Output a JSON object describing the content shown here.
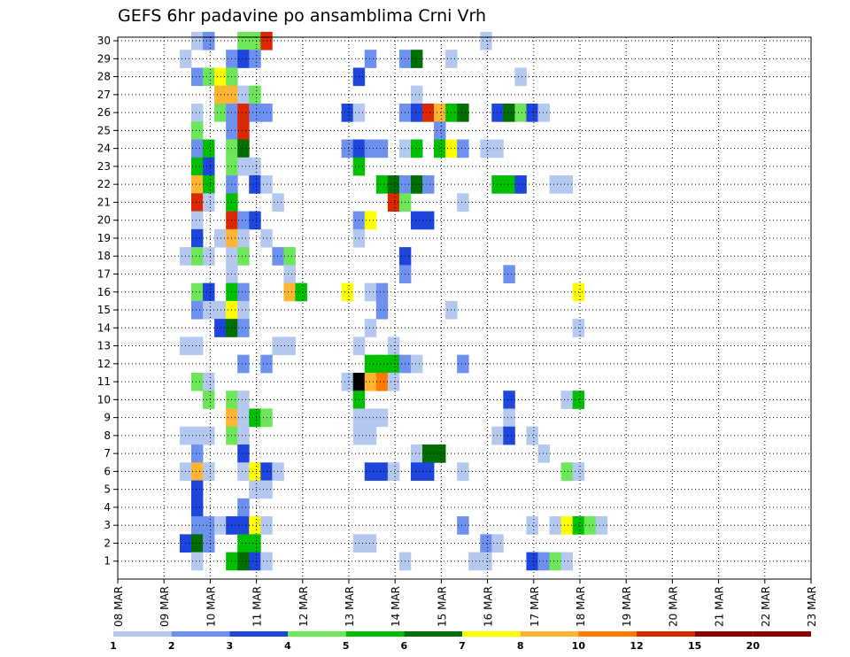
{
  "chart_data": {
    "type": "heatmap",
    "title": "GEFS 6hr padavine po ansamblima Crni Vrh",
    "x_labels": [
      "08 MAR",
      "09 MAR",
      "10 MAR",
      "11 MAR",
      "12 MAR",
      "13 MAR",
      "14 MAR",
      "15 MAR",
      "16 MAR",
      "17 MAR",
      "18 MAR",
      "19 MAR",
      "20 MAR",
      "21 MAR",
      "22 MAR",
      "23 MAR"
    ],
    "y_labels": [
      "1",
      "2",
      "3",
      "4",
      "5",
      "6",
      "7",
      "8",
      "9",
      "10",
      "11",
      "12",
      "13",
      "14",
      "15",
      "16",
      "17",
      "18",
      "19",
      "20",
      "21",
      "22",
      "23",
      "24",
      "25",
      "26",
      "27",
      "28",
      "29",
      "30"
    ],
    "legend": {
      "colors": [
        "#b4c8f0",
        "#6e91f0",
        "#1e46dc",
        "#6ee65a",
        "#00be00",
        "#006e00",
        "#ffff00",
        "#ffb432",
        "#ff7800",
        "#dc2800",
        "#8c0000"
      ],
      "labels": [
        "1",
        "2",
        "3",
        "4",
        "5",
        "6",
        "7",
        "8",
        "10",
        "12",
        "15",
        "20"
      ]
    },
    "cells": [
      [
        0,
        30,
        1
      ],
      [
        1,
        30,
        2
      ],
      [
        4,
        30,
        4
      ],
      [
        5,
        30,
        4
      ],
      [
        6,
        30,
        10
      ],
      [
        25,
        30,
        1
      ],
      [
        -1,
        29,
        1
      ],
      [
        3,
        29,
        2
      ],
      [
        4,
        29,
        3
      ],
      [
        5,
        29,
        2
      ],
      [
        15,
        29,
        2
      ],
      [
        18,
        29,
        2
      ],
      [
        19,
        29,
        6
      ],
      [
        22,
        29,
        1
      ],
      [
        0,
        28,
        2
      ],
      [
        1,
        28,
        4
      ],
      [
        2,
        28,
        7
      ],
      [
        3,
        28,
        4
      ],
      [
        14,
        28,
        3
      ],
      [
        28,
        28,
        1
      ],
      [
        2,
        27,
        8
      ],
      [
        3,
        27,
        8
      ],
      [
        4,
        27,
        1
      ],
      [
        5,
        27,
        4
      ],
      [
        19,
        27,
        1
      ],
      [
        0,
        26,
        1
      ],
      [
        2,
        26,
        4
      ],
      [
        3,
        26,
        2
      ],
      [
        4,
        26,
        10
      ],
      [
        5,
        26,
        2
      ],
      [
        6,
        26,
        2
      ],
      [
        13,
        26,
        3
      ],
      [
        14,
        26,
        1
      ],
      [
        18,
        26,
        2
      ],
      [
        19,
        26,
        3
      ],
      [
        20,
        26,
        10
      ],
      [
        21,
        26,
        8
      ],
      [
        22,
        26,
        5
      ],
      [
        23,
        26,
        6
      ],
      [
        26,
        26,
        3
      ],
      [
        27,
        26,
        6
      ],
      [
        28,
        26,
        4
      ],
      [
        29,
        26,
        3
      ],
      [
        30,
        26,
        1
      ],
      [
        0,
        25,
        4
      ],
      [
        3,
        25,
        2
      ],
      [
        4,
        25,
        10
      ],
      [
        21,
        25,
        2
      ],
      [
        0,
        24,
        2
      ],
      [
        1,
        24,
        5
      ],
      [
        3,
        24,
        4
      ],
      [
        4,
        24,
        6
      ],
      [
        13,
        24,
        2
      ],
      [
        14,
        24,
        3
      ],
      [
        15,
        24,
        2
      ],
      [
        16,
        24,
        2
      ],
      [
        18,
        24,
        1
      ],
      [
        19,
        24,
        5
      ],
      [
        21,
        24,
        5
      ],
      [
        22,
        24,
        7
      ],
      [
        23,
        24,
        2
      ],
      [
        25,
        24,
        1
      ],
      [
        26,
        24,
        1
      ],
      [
        0,
        23,
        5
      ],
      [
        1,
        23,
        3
      ],
      [
        3,
        23,
        4
      ],
      [
        4,
        23,
        1
      ],
      [
        5,
        23,
        1
      ],
      [
        14,
        23,
        5
      ],
      [
        0,
        22,
        8
      ],
      [
        1,
        22,
        5
      ],
      [
        3,
        22,
        2
      ],
      [
        5,
        22,
        3
      ],
      [
        6,
        22,
        1
      ],
      [
        16,
        22,
        5
      ],
      [
        17,
        22,
        6
      ],
      [
        18,
        22,
        2
      ],
      [
        19,
        22,
        6
      ],
      [
        20,
        22,
        2
      ],
      [
        26,
        22,
        5
      ],
      [
        27,
        22,
        5
      ],
      [
        28,
        22,
        3
      ],
      [
        31,
        22,
        1
      ],
      [
        32,
        22,
        1
      ],
      [
        0,
        21,
        10
      ],
      [
        1,
        21,
        1
      ],
      [
        3,
        21,
        5
      ],
      [
        7,
        21,
        1
      ],
      [
        17,
        21,
        10
      ],
      [
        18,
        21,
        4
      ],
      [
        23,
        21,
        1
      ],
      [
        0,
        20,
        1
      ],
      [
        3,
        20,
        10
      ],
      [
        4,
        20,
        2
      ],
      [
        5,
        20,
        3
      ],
      [
        14,
        20,
        2
      ],
      [
        15,
        20,
        7
      ],
      [
        19,
        20,
        3
      ],
      [
        20,
        20,
        3
      ],
      [
        0,
        19,
        3
      ],
      [
        2,
        19,
        1
      ],
      [
        3,
        19,
        8
      ],
      [
        4,
        19,
        1
      ],
      [
        6,
        19,
        1
      ],
      [
        14,
        19,
        1
      ],
      [
        -1,
        18,
        1
      ],
      [
        0,
        18,
        4
      ],
      [
        1,
        18,
        1
      ],
      [
        3,
        18,
        1
      ],
      [
        4,
        18,
        4
      ],
      [
        7,
        18,
        2
      ],
      [
        8,
        18,
        4
      ],
      [
        18,
        18,
        3
      ],
      [
        3,
        17,
        1
      ],
      [
        8,
        17,
        1
      ],
      [
        18,
        17,
        2
      ],
      [
        27,
        17,
        2
      ],
      [
        0,
        16,
        4
      ],
      [
        1,
        16,
        3
      ],
      [
        3,
        16,
        5
      ],
      [
        4,
        16,
        2
      ],
      [
        8,
        16,
        8
      ],
      [
        9,
        16,
        5
      ],
      [
        13,
        16,
        7
      ],
      [
        15,
        16,
        1
      ],
      [
        16,
        16,
        2
      ],
      [
        33,
        16,
        7
      ],
      [
        0,
        15,
        2
      ],
      [
        1,
        15,
        1
      ],
      [
        2,
        15,
        1
      ],
      [
        3,
        15,
        7
      ],
      [
        4,
        15,
        1
      ],
      [
        16,
        15,
        2
      ],
      [
        22,
        15,
        1
      ],
      [
        2,
        14,
        3
      ],
      [
        3,
        14,
        6
      ],
      [
        4,
        14,
        2
      ],
      [
        15,
        14,
        1
      ],
      [
        33,
        14,
        1
      ],
      [
        -1,
        13,
        1
      ],
      [
        0,
        13,
        1
      ],
      [
        7,
        13,
        1
      ],
      [
        8,
        13,
        1
      ],
      [
        14,
        13,
        1
      ],
      [
        17,
        13,
        1
      ],
      [
        4,
        12,
        2
      ],
      [
        6,
        12,
        2
      ],
      [
        15,
        12,
        5
      ],
      [
        16,
        12,
        5
      ],
      [
        17,
        12,
        5
      ],
      [
        18,
        12,
        2
      ],
      [
        19,
        12,
        1
      ],
      [
        23,
        12,
        2
      ],
      [
        0,
        11,
        4
      ],
      [
        1,
        11,
        1
      ],
      [
        13,
        11,
        1
      ],
      [
        14,
        11,
        12
      ],
      [
        15,
        11,
        8
      ],
      [
        16,
        11,
        9
      ],
      [
        17,
        11,
        1
      ],
      [
        1,
        10,
        4
      ],
      [
        3,
        10,
        4
      ],
      [
        4,
        10,
        1
      ],
      [
        14,
        10,
        5
      ],
      [
        27,
        10,
        3
      ],
      [
        32,
        10,
        1
      ],
      [
        33,
        10,
        5
      ],
      [
        3,
        9,
        8
      ],
      [
        4,
        9,
        1
      ],
      [
        5,
        9,
        5
      ],
      [
        6,
        9,
        4
      ],
      [
        14,
        9,
        1
      ],
      [
        15,
        9,
        1
      ],
      [
        16,
        9,
        1
      ],
      [
        27,
        9,
        1
      ],
      [
        -1,
        8,
        1
      ],
      [
        0,
        8,
        1
      ],
      [
        1,
        8,
        1
      ],
      [
        3,
        8,
        4
      ],
      [
        4,
        8,
        1
      ],
      [
        14,
        8,
        1
      ],
      [
        15,
        8,
        1
      ],
      [
        26,
        8,
        1
      ],
      [
        27,
        8,
        3
      ],
      [
        29,
        8,
        1
      ],
      [
        0,
        7,
        2
      ],
      [
        4,
        7,
        3
      ],
      [
        19,
        7,
        1
      ],
      [
        20,
        7,
        6
      ],
      [
        21,
        7,
        6
      ],
      [
        30,
        7,
        1
      ],
      [
        -1,
        6,
        1
      ],
      [
        0,
        6,
        8
      ],
      [
        1,
        6,
        1
      ],
      [
        4,
        6,
        1
      ],
      [
        5,
        6,
        7
      ],
      [
        6,
        6,
        3
      ],
      [
        7,
        6,
        1
      ],
      [
        15,
        6,
        3
      ],
      [
        16,
        6,
        3
      ],
      [
        17,
        6,
        1
      ],
      [
        19,
        6,
        3
      ],
      [
        20,
        6,
        3
      ],
      [
        23,
        6,
        1
      ],
      [
        32,
        6,
        4
      ],
      [
        33,
        6,
        1
      ],
      [
        0,
        5,
        3
      ],
      [
        5,
        5,
        1
      ],
      [
        6,
        5,
        1
      ],
      [
        0,
        4,
        3
      ],
      [
        4,
        4,
        2
      ],
      [
        0,
        3,
        2
      ],
      [
        1,
        3,
        2
      ],
      [
        2,
        3,
        1
      ],
      [
        3,
        3,
        3
      ],
      [
        4,
        3,
        3
      ],
      [
        5,
        3,
        7
      ],
      [
        6,
        3,
        1
      ],
      [
        23,
        3,
        2
      ],
      [
        29,
        3,
        1
      ],
      [
        31,
        3,
        1
      ],
      [
        32,
        3,
        7
      ],
      [
        33,
        3,
        5
      ],
      [
        34,
        3,
        4
      ],
      [
        35,
        3,
        1
      ],
      [
        -1,
        2,
        3
      ],
      [
        0,
        2,
        6
      ],
      [
        1,
        2,
        2
      ],
      [
        4,
        2,
        5
      ],
      [
        5,
        2,
        5
      ],
      [
        14,
        2,
        1
      ],
      [
        15,
        2,
        1
      ],
      [
        25,
        2,
        2
      ],
      [
        26,
        2,
        1
      ],
      [
        0,
        1,
        1
      ],
      [
        3,
        1,
        5
      ],
      [
        4,
        1,
        6
      ],
      [
        5,
        1,
        3
      ],
      [
        6,
        1,
        1
      ],
      [
        18,
        1,
        1
      ],
      [
        24,
        1,
        1
      ],
      [
        25,
        1,
        1
      ],
      [
        29,
        1,
        3
      ],
      [
        30,
        1,
        2
      ],
      [
        31,
        1,
        4
      ],
      [
        32,
        1,
        1
      ]
    ]
  }
}
